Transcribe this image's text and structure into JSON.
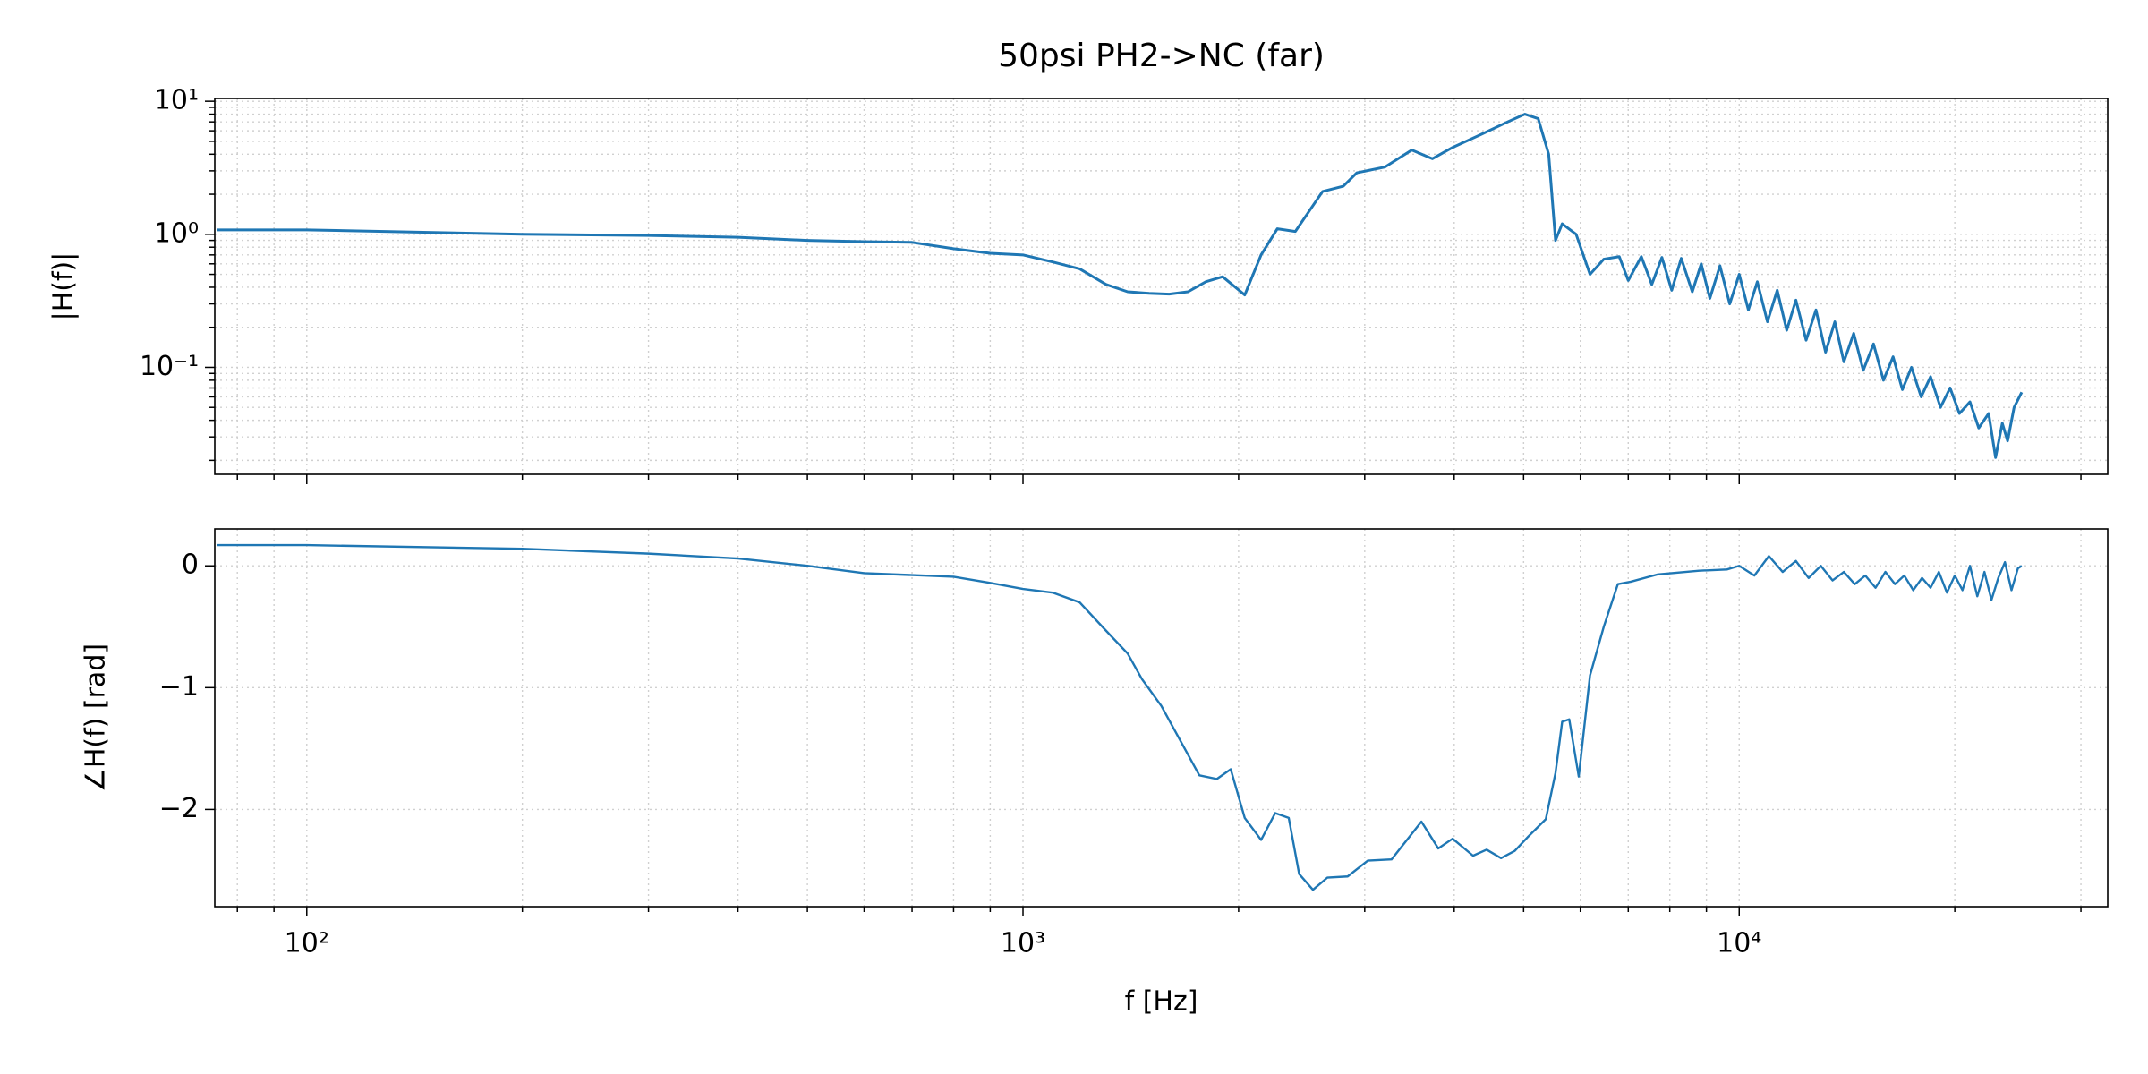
{
  "chart_data": [
    {
      "type": "line",
      "title": "50psi PH2->NC (far)",
      "ylabel": "|H(f)|",
      "log_x": true,
      "log_y": true,
      "grid": true,
      "color": "#1f77b4",
      "xlim": [
        74.4,
        32700
      ],
      "ylim": [
        0.0157,
        10.5
      ],
      "xticks": [
        100,
        1000,
        10000
      ],
      "x_minor_ticks": [
        80,
        90,
        200,
        300,
        400,
        500,
        600,
        700,
        800,
        900,
        2000,
        3000,
        4000,
        5000,
        6000,
        7000,
        8000,
        9000,
        20000,
        30000
      ],
      "yticks": [
        {
          "value": 10,
          "label": "10¹"
        },
        {
          "value": 1,
          "label": "10⁰"
        },
        {
          "value": 0.1,
          "label": "10⁻¹"
        }
      ],
      "y_minor_ticks": [
        0.02,
        0.03,
        0.04,
        0.05,
        0.06,
        0.07,
        0.08,
        0.09,
        0.2,
        0.3,
        0.4,
        0.5,
        0.6,
        0.7,
        0.8,
        0.9,
        2,
        3,
        4,
        5,
        6,
        7,
        8,
        9
      ],
      "x": [
        75,
        100,
        200,
        300,
        400,
        500,
        600,
        700,
        800,
        900,
        1000,
        1100,
        1200,
        1306,
        1400,
        1500,
        1600,
        1700,
        1800,
        1900,
        2040,
        2150,
        2265,
        2400,
        2620,
        2800,
        2925,
        3200,
        3490,
        3730,
        3980,
        4350,
        4750,
        5020,
        5240,
        5420,
        5540,
        5660,
        5920,
        6190,
        6470,
        6800,
        7000,
        7300,
        7550,
        7800,
        8050,
        8300,
        8600,
        8850,
        9100,
        9400,
        9700,
        10000,
        10300,
        10600,
        10950,
        11300,
        11650,
        12000,
        12400,
        12800,
        13200,
        13600,
        14000,
        14450,
        14900,
        15400,
        15900,
        16400,
        16900,
        17400,
        17950,
        18500,
        19100,
        19700,
        20300,
        21000,
        21600,
        22300,
        22800,
        23300,
        23700,
        24200,
        24800
      ],
      "values": [
        1.08,
        1.08,
        1.0,
        0.98,
        0.95,
        0.9,
        0.88,
        0.87,
        0.78,
        0.72,
        0.7,
        0.62,
        0.55,
        0.42,
        0.37,
        0.36,
        0.355,
        0.37,
        0.44,
        0.48,
        0.35,
        0.7,
        1.1,
        1.05,
        2.1,
        2.3,
        2.9,
        3.2,
        4.3,
        3.7,
        4.5,
        5.6,
        7.0,
        8.0,
        7.4,
        4.0,
        0.9,
        1.2,
        1.0,
        0.5,
        0.65,
        0.68,
        0.45,
        0.68,
        0.42,
        0.67,
        0.38,
        0.66,
        0.37,
        0.6,
        0.33,
        0.58,
        0.3,
        0.5,
        0.27,
        0.44,
        0.22,
        0.38,
        0.19,
        0.32,
        0.16,
        0.27,
        0.13,
        0.22,
        0.11,
        0.18,
        0.095,
        0.15,
        0.08,
        0.12,
        0.068,
        0.1,
        0.06,
        0.085,
        0.05,
        0.07,
        0.045,
        0.055,
        0.035,
        0.045,
        0.021,
        0.038,
        0.028,
        0.05,
        0.065
      ]
    },
    {
      "type": "line",
      "ylabel": "∠H(f) [rad]",
      "xlabel": "f [Hz]",
      "log_x": true,
      "log_y": false,
      "grid": true,
      "color": "#1f77b4",
      "xlim": [
        74.4,
        32700
      ],
      "ylim": [
        -2.798,
        0.303
      ],
      "xticks": [
        {
          "value": 100,
          "label": "10²"
        },
        {
          "value": 1000,
          "label": "10³"
        },
        {
          "value": 10000,
          "label": "10⁴"
        }
      ],
      "x_minor_ticks": [
        80,
        90,
        200,
        300,
        400,
        500,
        600,
        700,
        800,
        900,
        2000,
        3000,
        4000,
        5000,
        6000,
        7000,
        8000,
        9000,
        20000,
        30000
      ],
      "yticks": [
        0,
        {
          "value": -1,
          "label": "−1"
        },
        {
          "value": -2,
          "label": "−2"
        }
      ],
      "x": [
        75,
        100,
        200,
        300,
        400,
        500,
        600,
        800,
        900,
        1000,
        1100,
        1200,
        1300,
        1400,
        1466,
        1560,
        1763,
        1865,
        1950,
        2040,
        2150,
        2250,
        2350,
        2430,
        2540,
        2660,
        2840,
        3030,
        3270,
        3600,
        3800,
        3980,
        4250,
        4440,
        4650,
        4860,
        5080,
        5370,
        5540,
        5660,
        5790,
        5970,
        6190,
        6470,
        6770,
        7060,
        7700,
        8790,
        9610,
        10000,
        10500,
        11000,
        11500,
        12000,
        12500,
        13000,
        13500,
        14000,
        14500,
        15000,
        15500,
        16000,
        16500,
        17000,
        17500,
        18000,
        18500,
        19000,
        19500,
        20000,
        20500,
        21000,
        21500,
        22000,
        22500,
        23000,
        23500,
        24000,
        24500,
        24800
      ],
      "values": [
        0.17,
        0.17,
        0.14,
        0.1,
        0.06,
        0.0,
        -0.06,
        -0.09,
        -0.14,
        -0.19,
        -0.22,
        -0.3,
        -0.52,
        -0.72,
        -0.93,
        -1.15,
        -1.72,
        -1.75,
        -1.67,
        -2.07,
        -2.25,
        -2.03,
        -2.07,
        -2.53,
        -2.66,
        -2.56,
        -2.55,
        -2.42,
        -2.41,
        -2.1,
        -2.32,
        -2.24,
        -2.38,
        -2.33,
        -2.4,
        -2.34,
        -2.22,
        -2.08,
        -1.7,
        -1.28,
        -1.26,
        -1.73,
        -0.9,
        -0.5,
        -0.15,
        -0.13,
        -0.07,
        -0.04,
        -0.03,
        0.0,
        -0.08,
        0.08,
        -0.05,
        0.04,
        -0.1,
        0.0,
        -0.12,
        -0.05,
        -0.15,
        -0.08,
        -0.18,
        -0.05,
        -0.15,
        -0.08,
        -0.2,
        -0.1,
        -0.18,
        -0.05,
        -0.22,
        -0.08,
        -0.2,
        0.0,
        -0.25,
        -0.05,
        -0.28,
        -0.1,
        0.03,
        -0.2,
        -0.02,
        0.0
      ]
    }
  ]
}
